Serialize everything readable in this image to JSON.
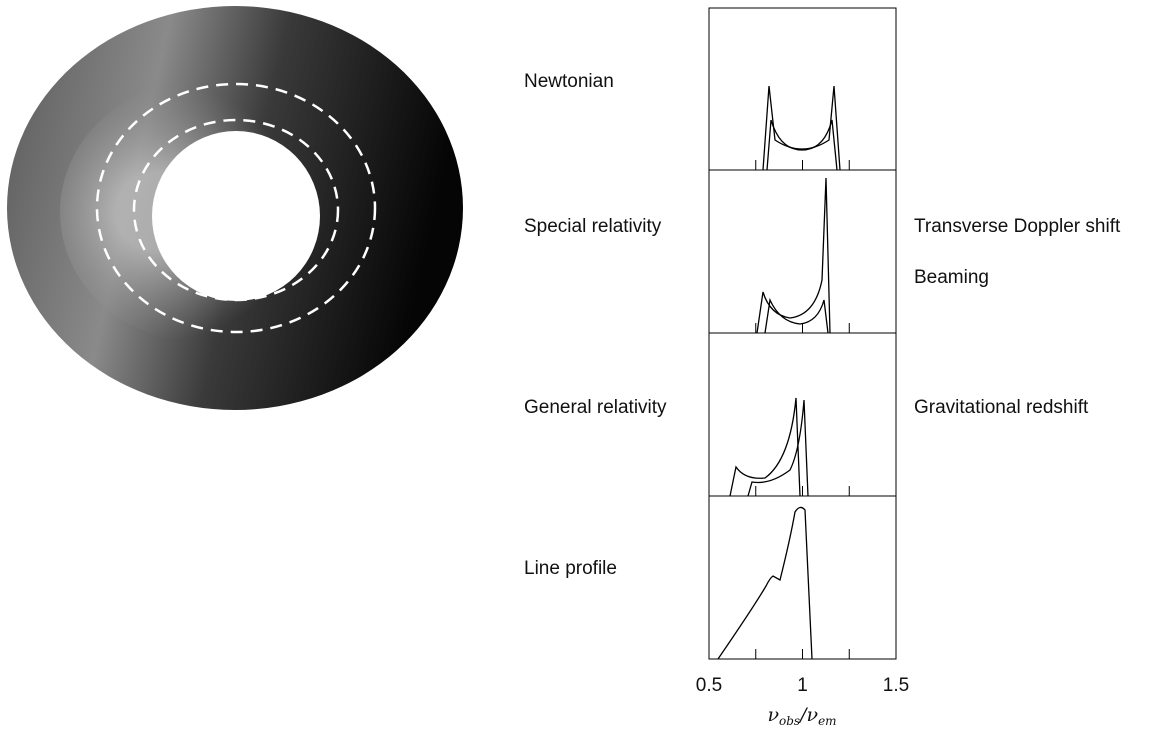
{
  "panels": [
    {
      "label": "Newtonian"
    },
    {
      "label": "Special relativity",
      "notes": [
        "Transverse Doppler shift",
        "Beaming"
      ]
    },
    {
      "label": "General relativity",
      "notes": [
        "Gravitational redshift"
      ]
    },
    {
      "label": "Line profile"
    }
  ],
  "axis": {
    "xlim": [
      0.5,
      1.5
    ],
    "xticks": [
      0.5,
      1,
      1.5
    ],
    "minor_ticks": [
      0.75,
      1,
      1.25
    ],
    "label_parts": [
      "ν",
      "obs",
      "/",
      "ν",
      "em"
    ]
  }
}
